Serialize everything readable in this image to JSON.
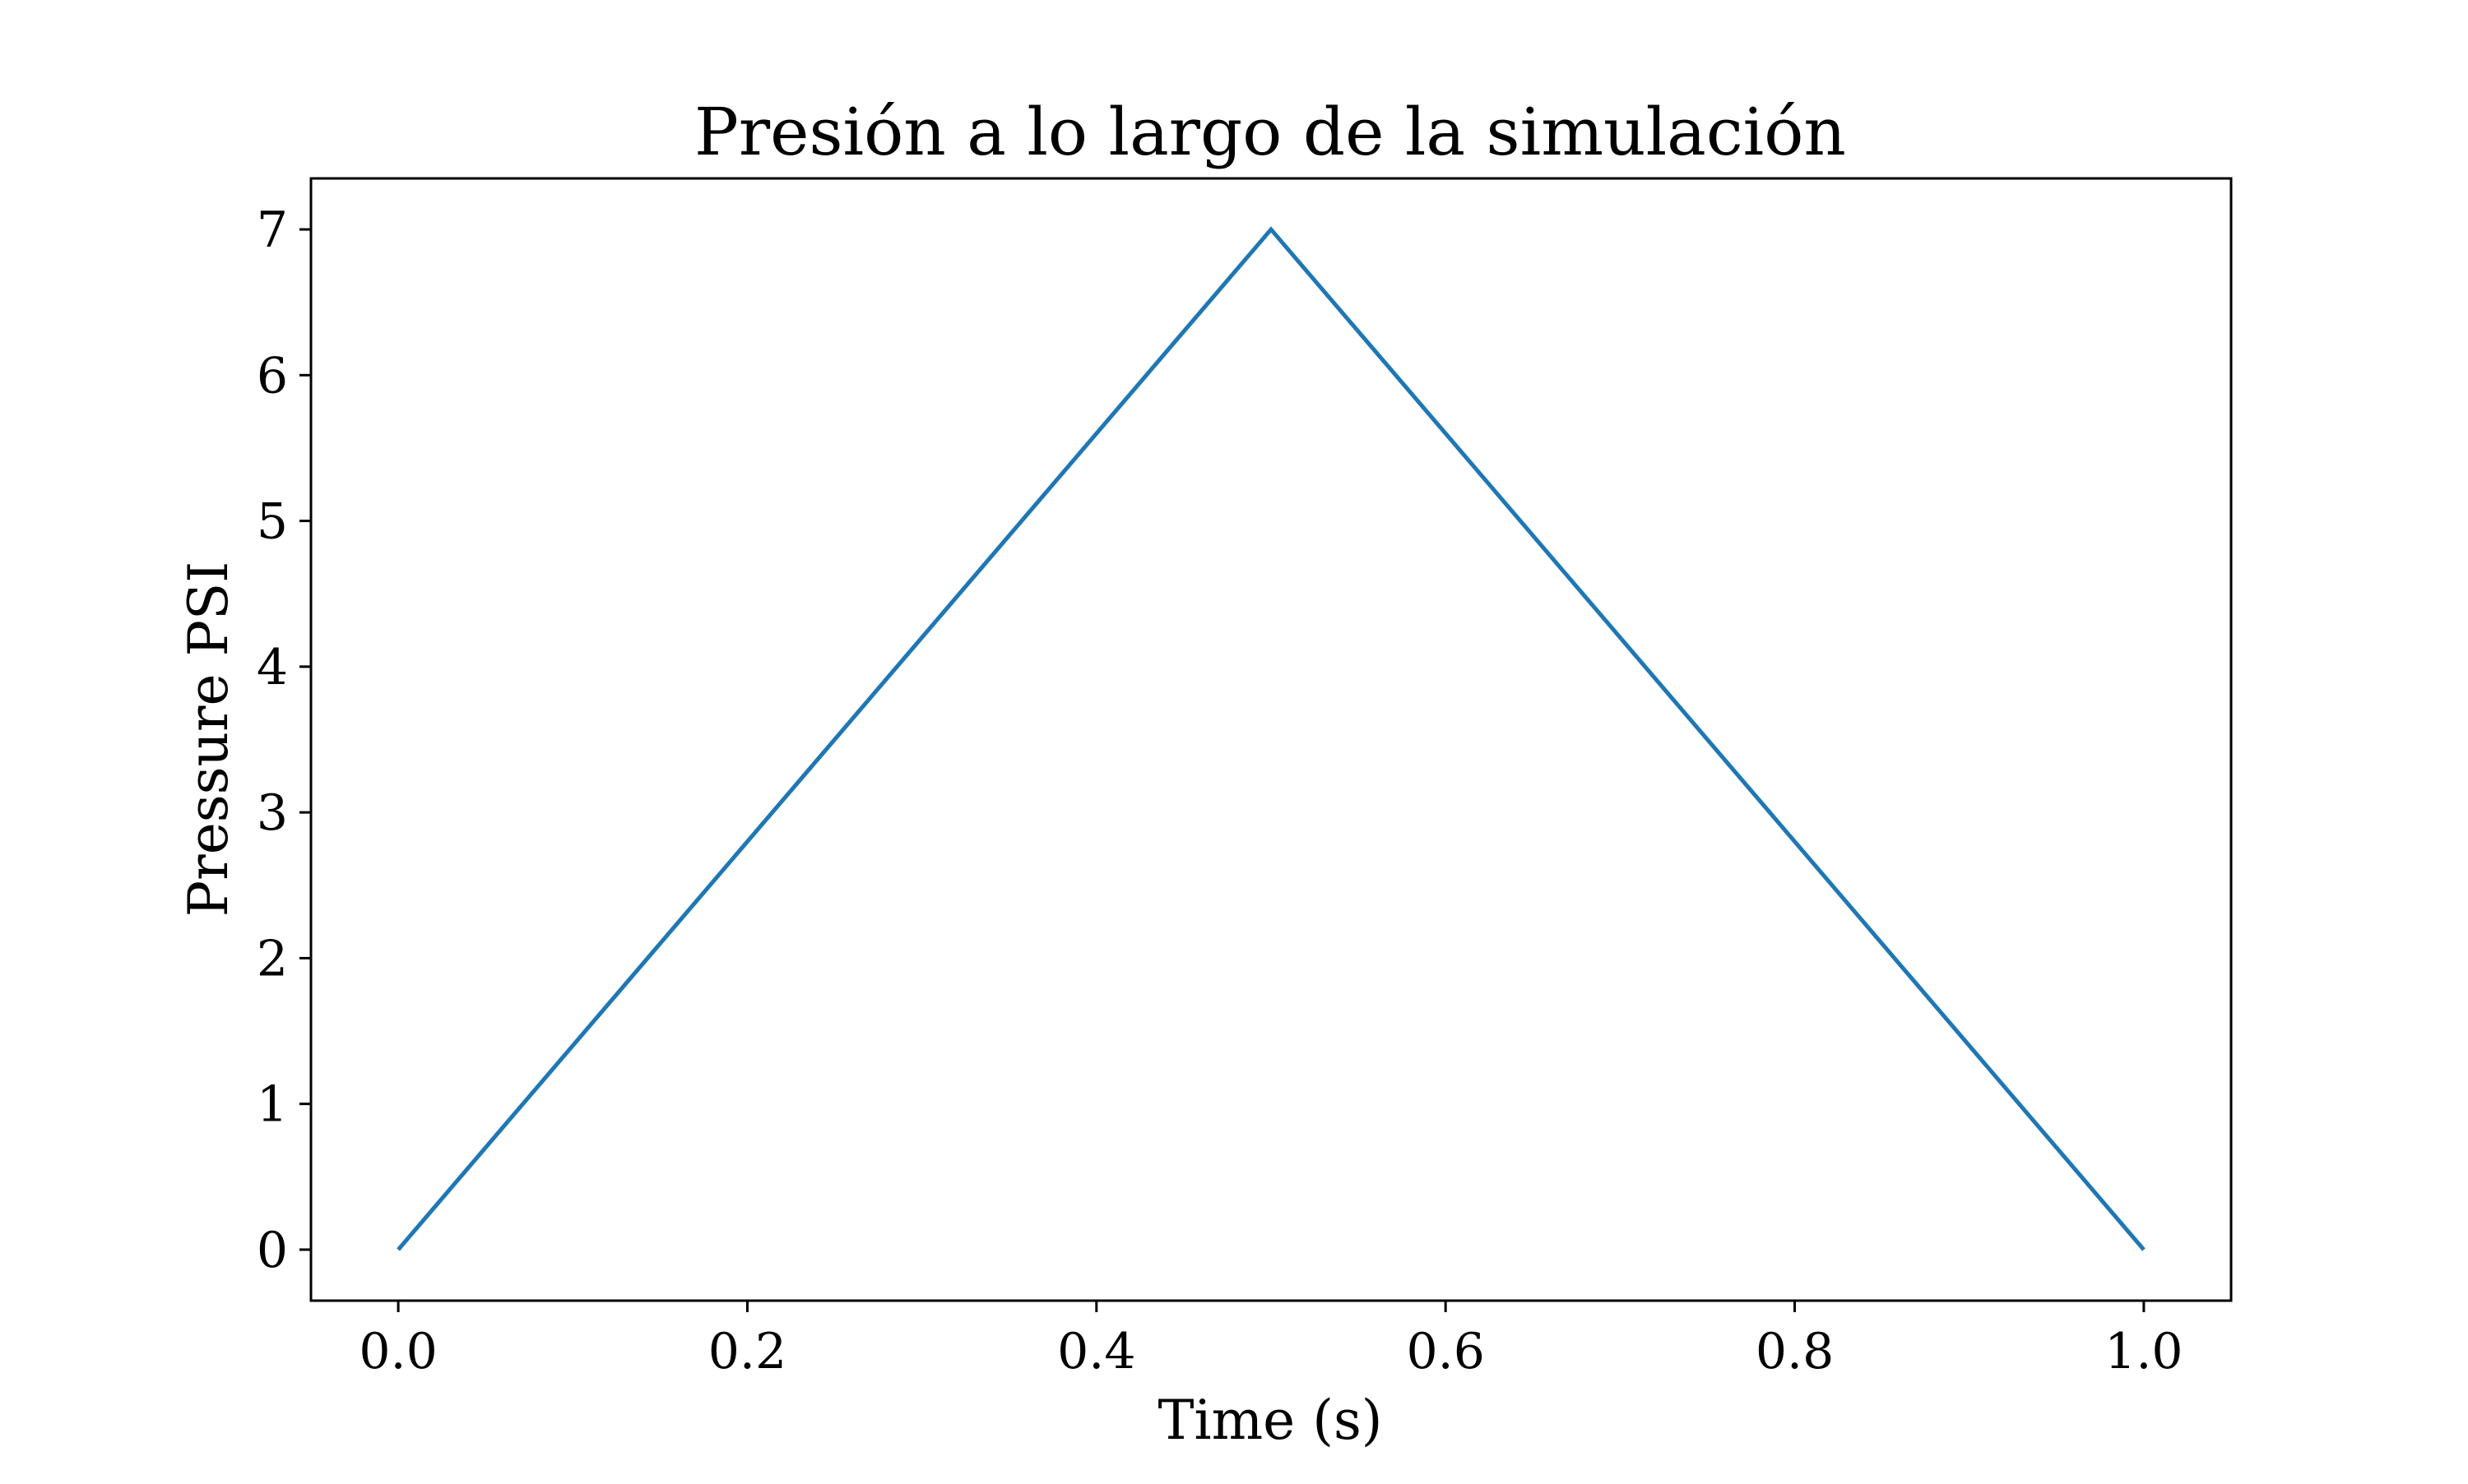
{
  "chart_data": {
    "type": "line",
    "title": "Presión a lo largo de la simulación",
    "xlabel": "Time (s)",
    "ylabel": "Pressure PSI",
    "xlim": [
      -0.05,
      1.05
    ],
    "ylim": [
      -0.35,
      7.35
    ],
    "xticks": [
      0.0,
      0.2,
      0.4,
      0.6,
      0.8,
      1.0
    ],
    "xtick_labels": [
      "0.0",
      "0.2",
      "0.4",
      "0.6",
      "0.8",
      "1.0"
    ],
    "yticks": [
      0,
      1,
      2,
      3,
      4,
      5,
      6,
      7
    ],
    "ytick_labels": [
      "0",
      "1",
      "2",
      "3",
      "4",
      "5",
      "6",
      "7"
    ],
    "grid": false,
    "series": [
      {
        "color": "#1f77b4",
        "x": [
          0.0,
          0.5,
          1.0
        ],
        "y": [
          0,
          7,
          0
        ]
      }
    ]
  }
}
